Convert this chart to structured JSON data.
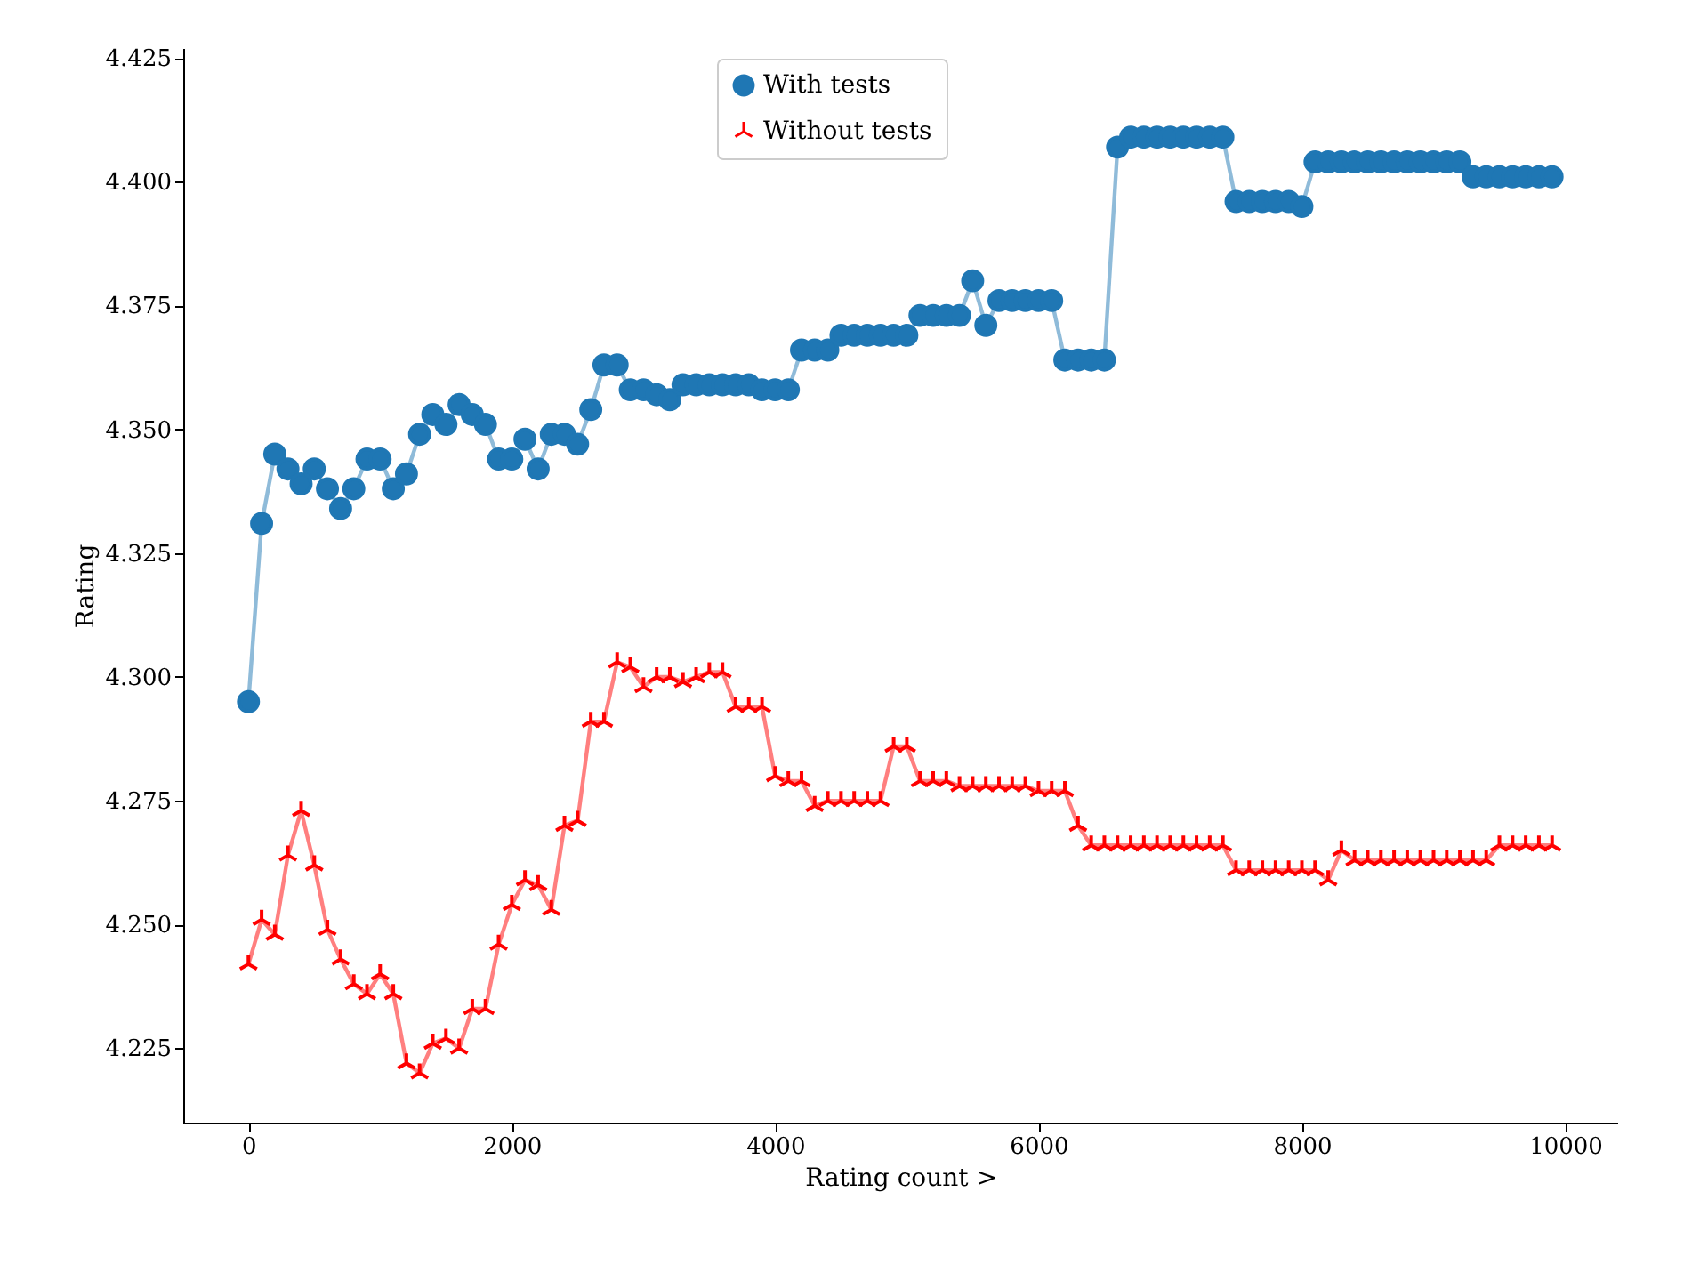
{
  "chart_data": {
    "type": "line",
    "xlabel": "Rating count >",
    "ylabel": "Rating",
    "x": [
      0,
      100,
      200,
      300,
      400,
      500,
      600,
      700,
      800,
      900,
      1000,
      1100,
      1200,
      1300,
      1400,
      1500,
      1600,
      1700,
      1800,
      1900,
      2000,
      2100,
      2200,
      2300,
      2400,
      2500,
      2600,
      2700,
      2800,
      2900,
      3000,
      3100,
      3200,
      3300,
      3400,
      3500,
      3600,
      3700,
      3800,
      3900,
      4000,
      4100,
      4200,
      4300,
      4400,
      4500,
      4600,
      4700,
      4800,
      4900,
      5000,
      5100,
      5200,
      5300,
      5400,
      5500,
      5600,
      5700,
      5800,
      5900,
      6000,
      6100,
      6200,
      6300,
      6400,
      6500,
      6600,
      6700,
      6800,
      6900,
      7000,
      7100,
      7200,
      7300,
      7400,
      7500,
      7600,
      7700,
      7800,
      7900,
      8000,
      8100,
      8200,
      8300,
      8400,
      8500,
      8600,
      8700,
      8800,
      8900,
      9000,
      9100,
      9200,
      9300,
      9400,
      9500,
      9600,
      9700,
      9800,
      9900
    ],
    "series": [
      {
        "name": "With tests",
        "color": "#1f77b4",
        "marker": "circle",
        "values": [
          4.295,
          4.331,
          4.345,
          4.342,
          4.339,
          4.342,
          4.338,
          4.334,
          4.338,
          4.344,
          4.344,
          4.338,
          4.341,
          4.349,
          4.353,
          4.351,
          4.355,
          4.353,
          4.351,
          4.344,
          4.344,
          4.348,
          4.342,
          4.349,
          4.349,
          4.347,
          4.354,
          4.363,
          4.363,
          4.358,
          4.358,
          4.357,
          4.356,
          4.359,
          4.359,
          4.359,
          4.359,
          4.359,
          4.359,
          4.358,
          4.358,
          4.358,
          4.366,
          4.366,
          4.366,
          4.369,
          4.369,
          4.369,
          4.369,
          4.369,
          4.369,
          4.373,
          4.373,
          4.373,
          4.373,
          4.38,
          4.371,
          4.376,
          4.376,
          4.376,
          4.376,
          4.376,
          4.364,
          4.364,
          4.364,
          4.364,
          4.407,
          4.409,
          4.409,
          4.409,
          4.409,
          4.409,
          4.409,
          4.409,
          4.409,
          4.396,
          4.396,
          4.396,
          4.396,
          4.396,
          4.395,
          4.404,
          4.404,
          4.404,
          4.404,
          4.404,
          4.404,
          4.404,
          4.404,
          4.404,
          4.404,
          4.404,
          4.404,
          4.401,
          4.401,
          4.401,
          4.401,
          4.401,
          4.401,
          4.401
        ]
      },
      {
        "name": "Without tests",
        "color": "#ff0000",
        "marker": "cross",
        "values": [
          4.242,
          4.251,
          4.248,
          4.264,
          4.273,
          4.262,
          4.249,
          4.243,
          4.238,
          4.236,
          4.24,
          4.236,
          4.222,
          4.22,
          4.226,
          4.227,
          4.225,
          4.233,
          4.233,
          4.246,
          4.254,
          4.259,
          4.258,
          4.253,
          4.27,
          4.271,
          4.291,
          4.291,
          4.303,
          4.302,
          4.298,
          4.3,
          4.3,
          4.299,
          4.3,
          4.301,
          4.301,
          4.294,
          4.294,
          4.294,
          4.28,
          4.279,
          4.279,
          4.274,
          4.275,
          4.275,
          4.275,
          4.275,
          4.275,
          4.286,
          4.286,
          4.279,
          4.279,
          4.279,
          4.278,
          4.278,
          4.278,
          4.278,
          4.278,
          4.278,
          4.277,
          4.277,
          4.277,
          4.27,
          4.266,
          4.266,
          4.266,
          4.266,
          4.266,
          4.266,
          4.266,
          4.266,
          4.266,
          4.266,
          4.266,
          4.261,
          4.261,
          4.261,
          4.261,
          4.261,
          4.261,
          4.261,
          4.259,
          4.265,
          4.263,
          4.263,
          4.263,
          4.263,
          4.263,
          4.263,
          4.263,
          4.263,
          4.263,
          4.263,
          4.263,
          4.266,
          4.266,
          4.266,
          4.266,
          4.266
        ]
      }
    ],
    "xlim": [
      -495,
      10395
    ],
    "ylim": [
      4.21,
      4.427
    ],
    "xticks": [
      0,
      2000,
      4000,
      6000,
      8000,
      10000
    ],
    "yticks": [
      4.225,
      {
        "value": 4.25,
        "label": "4.250"
      },
      4.275,
      {
        "value": 4.3,
        "label": "4.300"
      },
      4.325,
      {
        "value": 4.35,
        "label": "4.350"
      },
      4.375,
      {
        "value": 4.4,
        "label": "4.400"
      },
      4.425
    ],
    "grid": false,
    "legend": "top",
    "line_style": "solid"
  }
}
